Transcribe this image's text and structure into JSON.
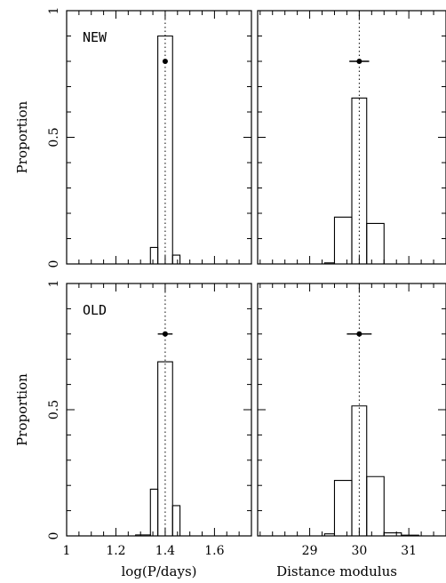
{
  "chart_data": [
    {
      "type": "bar",
      "id": "new-period",
      "panel_label": "NEW",
      "xlabel": "",
      "ylabel": "Proportion",
      "xlim": [
        1.0,
        1.75
      ],
      "ylim": [
        0,
        1
      ],
      "x_ticks": [
        1.0,
        1.2,
        1.4,
        1.6
      ],
      "x_tick_labels": [],
      "y_ticks": [
        0,
        0.5,
        1
      ],
      "y_tick_labels": [
        "0",
        "0.5",
        "1"
      ],
      "bins": [
        {
          "x0": 1.34,
          "x1": 1.37,
          "value": 0.065
        },
        {
          "x0": 1.37,
          "x1": 1.43,
          "value": 0.9
        },
        {
          "x0": 1.43,
          "x1": 1.46,
          "value": 0.035
        }
      ],
      "reference_x": 1.4,
      "point": {
        "x": 1.4,
        "y": 0.8,
        "xerr": 0.0
      }
    },
    {
      "type": "bar",
      "id": "new-distance",
      "panel_label": "",
      "xlabel": "",
      "ylabel": "",
      "xlim": [
        27.95,
        31.75
      ],
      "ylim": [
        0,
        1
      ],
      "x_ticks": [
        29,
        30,
        31
      ],
      "x_tick_labels": [],
      "y_ticks": [
        0,
        0.5,
        1
      ],
      "y_tick_labels": [],
      "bins": [
        {
          "x0": 29.3,
          "x1": 29.5,
          "value": 0.004
        },
        {
          "x0": 29.5,
          "x1": 29.85,
          "value": 0.185
        },
        {
          "x0": 29.85,
          "x1": 30.15,
          "value": 0.655
        },
        {
          "x0": 30.15,
          "x1": 30.5,
          "value": 0.16
        }
      ],
      "reference_x": 30.0,
      "point": {
        "x": 30.0,
        "y": 0.8,
        "xerr": 0.2
      }
    },
    {
      "type": "bar",
      "id": "old-period",
      "panel_label": "OLD",
      "xlabel": "log(P/days)",
      "ylabel": "Proportion",
      "xlim": [
        1.0,
        1.75
      ],
      "ylim": [
        0,
        1
      ],
      "x_ticks": [
        1.0,
        1.2,
        1.4,
        1.6
      ],
      "x_tick_labels": [
        "1",
        "1.2",
        "1.4",
        "1.6"
      ],
      "y_ticks": [
        0,
        0.5,
        1
      ],
      "y_tick_labels": [
        "0",
        "0.5",
        "1"
      ],
      "bins": [
        {
          "x0": 1.28,
          "x1": 1.34,
          "value": 0.004
        },
        {
          "x0": 1.34,
          "x1": 1.37,
          "value": 0.185
        },
        {
          "x0": 1.37,
          "x1": 1.43,
          "value": 0.69
        },
        {
          "x0": 1.43,
          "x1": 1.46,
          "value": 0.12
        }
      ],
      "reference_x": 1.4,
      "point": {
        "x": 1.4,
        "y": 0.8,
        "xerr": 0.03
      }
    },
    {
      "type": "bar",
      "id": "old-distance",
      "panel_label": "",
      "xlabel": "Distance modulus",
      "ylabel": "",
      "xlim": [
        27.95,
        31.75
      ],
      "ylim": [
        0,
        1
      ],
      "x_ticks": [
        29,
        30,
        31
      ],
      "x_tick_labels": [
        "29",
        "30",
        "31"
      ],
      "y_ticks": [
        0,
        0.5,
        1
      ],
      "y_tick_labels": [],
      "bins": [
        {
          "x0": 29.3,
          "x1": 29.5,
          "value": 0.008
        },
        {
          "x0": 29.5,
          "x1": 29.85,
          "value": 0.22
        },
        {
          "x0": 29.85,
          "x1": 30.15,
          "value": 0.515
        },
        {
          "x0": 30.15,
          "x1": 30.5,
          "value": 0.235
        },
        {
          "x0": 30.5,
          "x1": 30.85,
          "value": 0.012
        },
        {
          "x0": 30.85,
          "x1": 31.2,
          "value": 0.003
        }
      ],
      "reference_x": 30.0,
      "point": {
        "x": 30.0,
        "y": 0.8,
        "xerr": 0.25
      }
    }
  ]
}
